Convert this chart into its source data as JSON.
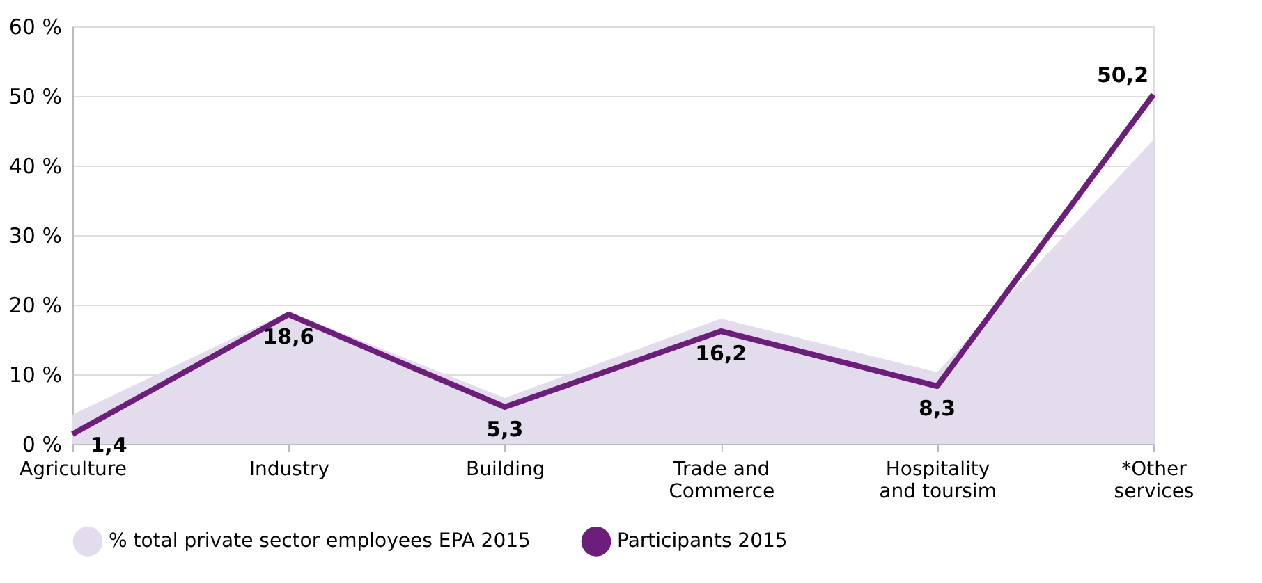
{
  "chart_data": {
    "type": "line",
    "categories": [
      "Agriculture",
      "Industry",
      "Building",
      "Trade and\nCommerce",
      "Hospitality\nand toursim",
      "*Other\nservices"
    ],
    "series": [
      {
        "name": "% total private sector employees EPA 2015",
        "type": "area",
        "color": "#e3dcec",
        "values": [
          4.2,
          19,
          6.6,
          18,
          10.3,
          43.7
        ]
      },
      {
        "name": "Participants 2015",
        "type": "line",
        "color": "#6b1f7a",
        "values": [
          1.4,
          18.6,
          5.3,
          16.2,
          8.3,
          50.2
        ],
        "value_labels": [
          "1,4",
          "18,6",
          "5,3",
          "16,2",
          "8,3",
          "50,2"
        ]
      }
    ],
    "ylim": [
      0,
      60
    ],
    "yticks": [
      {
        "value": 0,
        "label": "0 %"
      },
      {
        "value": 10,
        "label": "10 %"
      },
      {
        "value": 20,
        "label": "20 %"
      },
      {
        "value": 30,
        "label": "30 %"
      },
      {
        "value": 40,
        "label": "40 %"
      },
      {
        "value": 50,
        "label": "50 %"
      },
      {
        "value": 60,
        "label": "60 %"
      }
    ],
    "grid": "y",
    "legend": "bottom",
    "marker": "none",
    "line_style": "solid"
  }
}
